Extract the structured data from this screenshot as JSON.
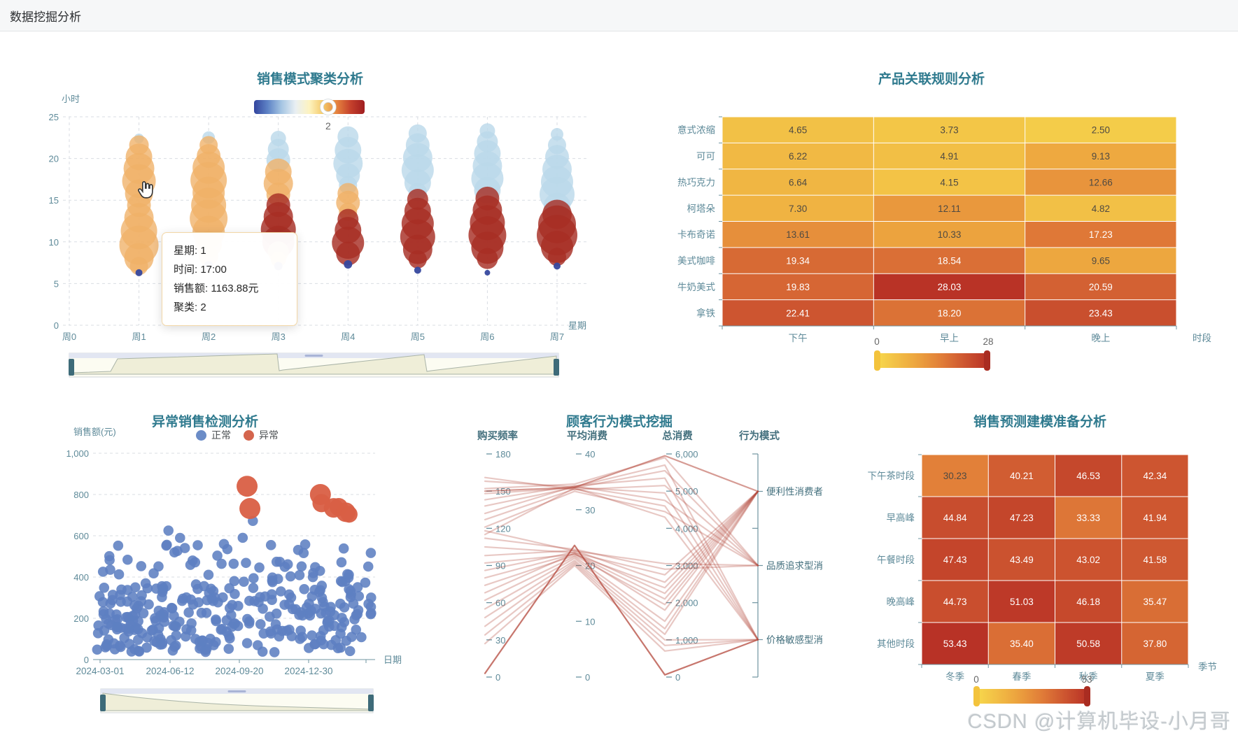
{
  "header": {
    "title": "数据挖掘分析"
  },
  "watermark": "CSDN @计算机毕设-小月哥",
  "colors": {
    "title": "#2f7a8e",
    "axis_label": "#5e8a99",
    "axis_line": "#6f94a0",
    "grid_line": "#d9dde3",
    "heat_text_dark": "#4f4a42",
    "heat_text_light": "#ffffff",
    "heat_stops": [
      {
        "p": 0.0,
        "c": "#f7d94c"
      },
      {
        "p": 0.35,
        "c": "#eda63f"
      },
      {
        "p": 0.6,
        "c": "#e07b38"
      },
      {
        "p": 0.8,
        "c": "#cd5530"
      },
      {
        "p": 1.0,
        "c": "#b93326"
      }
    ],
    "cluster_map_stops": [
      "#32449e",
      "#5f84c6",
      "#a6c6e3",
      "#e9eff3",
      "#fdf3c0",
      "#f4c968",
      "#e5823f",
      "#c4402c",
      "#9f1d20"
    ],
    "bubble": {
      "o": "rgba(240,177,104,0.78)",
      "b": "rgba(186,216,234,0.80)",
      "r": "rgba(167,46,37,0.82)",
      "n": "rgba(54,72,158,0.95)"
    },
    "scatter_normal": "#5d80c1",
    "scatter_anomaly": "#d95f45",
    "parallel_line": "#b4483c",
    "slider": {
      "border": "#cfd4da",
      "fill": "#efeed8",
      "stroke": "#aab4a8",
      "strip": "#e2e6f2",
      "grip": "#a9b4d6",
      "handle": "#3e6b79",
      "bg": "#fcfcf2"
    }
  },
  "chart_data": [
    {
      "id": "cluster",
      "type": "scatter",
      "title": "销售模式聚类分析",
      "xlabel": "星期",
      "ylabel": "小时",
      "x_ticks": [
        "周0",
        "周1",
        "周2",
        "周3",
        "周4",
        "周5",
        "周6",
        "周7"
      ],
      "y_ticks": [
        25,
        20,
        15,
        10,
        5,
        0
      ],
      "ylim": [
        0,
        25
      ],
      "visualmap": {
        "handle_label": "2",
        "handle_pos": 0.67
      },
      "tooltip": {
        "lines": [
          "星期: 1",
          "时间: 17:00",
          "销售额: 1163.88元",
          "聚类: 2"
        ]
      },
      "columns": [
        {
          "day": 1,
          "bubbles": [
            [
              22.4,
              7,
              "b"
            ],
            [
              21.6,
              14,
              "o"
            ],
            [
              20.2,
              19,
              "o"
            ],
            [
              18.8,
              22,
              "o"
            ],
            [
              17.3,
              24,
              "o"
            ],
            [
              15.8,
              20,
              "o"
            ],
            [
              14.4,
              17,
              "o"
            ],
            [
              12.9,
              21,
              "o"
            ],
            [
              11.3,
              26,
              "o"
            ],
            [
              9.6,
              28,
              "o"
            ],
            [
              8.1,
              21,
              "o"
            ],
            [
              7.1,
              13,
              "o"
            ],
            [
              6.3,
              5,
              "n"
            ]
          ]
        },
        {
          "day": 2,
          "bubbles": [
            [
              22.5,
              9,
              "b"
            ],
            [
              21.6,
              13,
              "o"
            ],
            [
              20.3,
              17,
              "o"
            ],
            [
              18.9,
              23,
              "o"
            ],
            [
              17.4,
              26,
              "o"
            ],
            [
              15.9,
              23,
              "o"
            ],
            [
              14.4,
              25,
              "o"
            ],
            [
              12.8,
              27,
              "o"
            ],
            [
              11.2,
              23,
              "o"
            ],
            [
              9.7,
              19,
              "o"
            ],
            [
              8.3,
              14,
              "o"
            ],
            [
              7.2,
              6,
              "n"
            ]
          ]
        },
        {
          "day": 3,
          "bubbles": [
            [
              22.4,
              11,
              "b"
            ],
            [
              21.1,
              15,
              "b"
            ],
            [
              19.8,
              17,
              "b"
            ],
            [
              18.4,
              19,
              "o"
            ],
            [
              17.0,
              21,
              "o"
            ],
            [
              15.7,
              17,
              "o"
            ],
            [
              14.4,
              17,
              "r"
            ],
            [
              13.0,
              21,
              "r"
            ],
            [
              11.5,
              25,
              "r"
            ],
            [
              10.0,
              23,
              "r"
            ],
            [
              8.8,
              15,
              "o"
            ],
            [
              7.9,
              11,
              "o"
            ],
            [
              7.1,
              6,
              "n"
            ]
          ]
        },
        {
          "day": 4,
          "bubbles": [
            [
              22.6,
              15,
              "b"
            ],
            [
              21.0,
              19,
              "b"
            ],
            [
              19.4,
              21,
              "b"
            ],
            [
              18.0,
              17,
              "b"
            ],
            [
              16.8,
              13,
              "b"
            ],
            [
              15.8,
              15,
              "o"
            ],
            [
              14.7,
              17,
              "o"
            ],
            [
              13.6,
              13,
              "o"
            ],
            [
              12.7,
              15,
              "r"
            ],
            [
              11.4,
              19,
              "r"
            ],
            [
              9.9,
              23,
              "r"
            ],
            [
              8.6,
              17,
              "r"
            ],
            [
              7.3,
              6,
              "n"
            ]
          ]
        },
        {
          "day": 5,
          "bubbles": [
            [
              23.0,
              13,
              "b"
            ],
            [
              21.6,
              17,
              "b"
            ],
            [
              20.1,
              21,
              "b"
            ],
            [
              18.6,
              23,
              "b"
            ],
            [
              17.1,
              19,
              "b"
            ],
            [
              16.0,
              13,
              "b"
            ],
            [
              15.1,
              15,
              "r"
            ],
            [
              13.7,
              19,
              "r"
            ],
            [
              12.2,
              23,
              "r"
            ],
            [
              10.6,
              25,
              "r"
            ],
            [
              9.1,
              21,
              "r"
            ],
            [
              7.9,
              13,
              "r"
            ],
            [
              6.6,
              5,
              "n"
            ]
          ]
        },
        {
          "day": 6,
          "bubbles": [
            [
              23.3,
              11,
              "b"
            ],
            [
              22.0,
              15,
              "b"
            ],
            [
              20.6,
              19,
              "b"
            ],
            [
              19.1,
              21,
              "b"
            ],
            [
              17.6,
              23,
              "b"
            ],
            [
              16.2,
              19,
              "b"
            ],
            [
              15.2,
              17,
              "r"
            ],
            [
              13.8,
              21,
              "r"
            ],
            [
              12.3,
              25,
              "r"
            ],
            [
              10.8,
              27,
              "r"
            ],
            [
              9.3,
              23,
              "r"
            ],
            [
              8.0,
              15,
              "r"
            ],
            [
              6.3,
              4,
              "n"
            ]
          ]
        },
        {
          "day": 7,
          "bubbles": [
            [
              22.9,
              9,
              "b"
            ],
            [
              21.6,
              13,
              "b"
            ],
            [
              20.2,
              17,
              "b"
            ],
            [
              18.7,
              21,
              "b"
            ],
            [
              17.2,
              23,
              "b"
            ],
            [
              15.7,
              25,
              "b"
            ],
            [
              14.3,
              19,
              "b"
            ],
            [
              13.3,
              21,
              "r"
            ],
            [
              12.1,
              27,
              "r"
            ],
            [
              10.8,
              29,
              "r"
            ],
            [
              9.4,
              23,
              "r"
            ],
            [
              8.2,
              13,
              "r"
            ],
            [
              7.1,
              5,
              "n"
            ]
          ]
        }
      ]
    },
    {
      "id": "assoc",
      "type": "heatmap",
      "title": "产品关联规则分析",
      "xlabel": "时段",
      "rows": [
        "意式浓缩",
        "可可",
        "热巧克力",
        "柯塔朵",
        "卡布奇诺",
        "美式咖啡",
        "牛奶美式",
        "拿铁"
      ],
      "cols": [
        "下午",
        "早上",
        "晚上"
      ],
      "values": [
        [
          4.65,
          3.73,
          2.5
        ],
        [
          6.22,
          4.91,
          9.13
        ],
        [
          6.64,
          4.15,
          12.66
        ],
        [
          7.3,
          12.11,
          4.82
        ],
        [
          13.61,
          10.33,
          17.23
        ],
        [
          19.34,
          18.54,
          9.65
        ],
        [
          19.83,
          28.03,
          20.59
        ],
        [
          22.41,
          18.2,
          23.43
        ]
      ],
      "visualmap": {
        "min": 0,
        "max": 28
      }
    },
    {
      "id": "anomaly",
      "type": "scatter",
      "title": "异常销售检测分析",
      "ylabel": "销售额(元)",
      "xlabel": "日期",
      "legend": [
        "正常",
        "异常"
      ],
      "y_ticks": [
        1000,
        800,
        600,
        400,
        200,
        0
      ],
      "ylim": [
        0,
        1000
      ],
      "x_ticks": [
        "2024-03-01",
        "2024-06-12",
        "2024-09-20",
        "2024-12-30"
      ],
      "normal_points": {
        "count": 335,
        "seed": 12
      },
      "anomaly_points": [
        [
          0.546,
          840,
          15
        ],
        [
          0.556,
          732,
          15
        ],
        [
          0.806,
          800,
          15
        ],
        [
          0.81,
          758,
          13
        ],
        [
          0.853,
          735,
          14
        ],
        [
          0.871,
          739,
          13
        ],
        [
          0.896,
          714,
          14
        ],
        [
          0.908,
          704,
          12
        ]
      ]
    },
    {
      "id": "parallel",
      "type": "parallel",
      "title": "顾客行为模式挖掘",
      "axes": [
        {
          "name": "购买频率",
          "max": 180,
          "step": 30
        },
        {
          "name": "平均消费",
          "max": 40,
          "step": 10
        },
        {
          "name": "总消费",
          "max": 6000,
          "step": 1000
        },
        {
          "name": "行为模式",
          "categories": [
            "便利性消费者",
            "品质追求型消",
            "价格敏感型消"
          ]
        }
      ],
      "lines": [
        [
          152,
          34.6,
          5900,
          1
        ],
        [
          158,
          34.1,
          5700,
          2
        ],
        [
          148,
          33.9,
          5550,
          1
        ],
        [
          143,
          34.3,
          5350,
          2
        ],
        [
          161,
          33.6,
          5150,
          1
        ],
        [
          138,
          34.0,
          4950,
          2
        ],
        [
          132,
          34.2,
          4750,
          1
        ],
        [
          127,
          33.7,
          4600,
          2
        ],
        [
          121,
          33.3,
          4450,
          1
        ],
        [
          115,
          33.9,
          4300,
          2
        ],
        [
          118,
          22.6,
          3050,
          1
        ],
        [
          112,
          22.9,
          2900,
          1
        ],
        [
          105,
          22.3,
          2750,
          0
        ],
        [
          98,
          22.7,
          2550,
          0
        ],
        [
          92,
          22.0,
          2400,
          0
        ],
        [
          86,
          22.4,
          2250,
          0
        ],
        [
          80,
          22.1,
          2100,
          0
        ],
        [
          74,
          21.8,
          1950,
          0
        ],
        [
          68,
          22.2,
          1800,
          0
        ],
        [
          62,
          21.6,
          1500,
          0
        ],
        [
          55,
          21.3,
          1300,
          0
        ],
        [
          48,
          20.9,
          1150,
          0
        ],
        [
          41,
          20.6,
          1000,
          2
        ],
        [
          34,
          20.3,
          850,
          2
        ],
        [
          27,
          20.0,
          700,
          2
        ],
        [
          3,
          23.6,
          60,
          2,
          0.75
        ],
        [
          150,
          34.0,
          5950,
          0,
          0.55
        ]
      ]
    },
    {
      "id": "forecast",
      "type": "heatmap",
      "title": "销售预测建模准备分析",
      "xlabel": "季节",
      "rows": [
        "下午茶时段",
        "早高峰",
        "午餐时段",
        "晚高峰",
        "其他时段"
      ],
      "cols": [
        "冬季",
        "春季",
        "秋季",
        "夏季"
      ],
      "values": [
        [
          30.23,
          40.21,
          46.53,
          42.34
        ],
        [
          44.84,
          47.23,
          33.33,
          41.94
        ],
        [
          47.43,
          43.49,
          43.02,
          41.58
        ],
        [
          44.73,
          51.03,
          46.18,
          35.47
        ],
        [
          53.43,
          35.4,
          50.58,
          37.8
        ]
      ],
      "visualmap": {
        "min": 0,
        "max": 53
      }
    }
  ]
}
